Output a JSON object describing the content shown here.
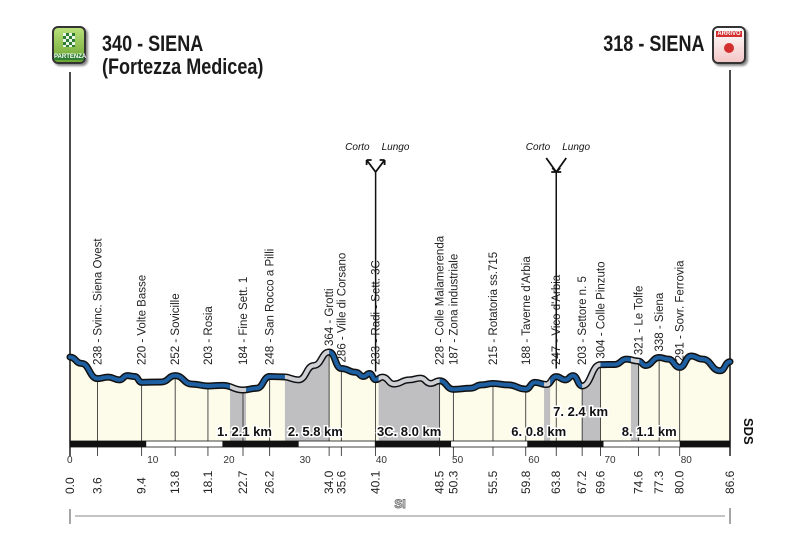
{
  "start": {
    "title": "340 - SIENA",
    "subtitle": "(Fortezza Medicea)",
    "badge": "PARTENZA",
    "badge_color": "#7cb342"
  },
  "finish": {
    "title": "318 - SIENA",
    "badge": "ARRIVO",
    "badge_color": "#e53935"
  },
  "colors": {
    "profile": "#1d5fa0",
    "sector": "#bfbfc1",
    "fill": "#fdfbea",
    "outline": "#111111"
  },
  "chart_data": {
    "type": "area",
    "xlabel": "",
    "ylabel": "",
    "xlim": [
      0,
      86.6
    ],
    "x_ticks": [
      0,
      10,
      20,
      30,
      40,
      50,
      60,
      70,
      80
    ],
    "profile": [
      [
        0,
        340
      ],
      [
        1.5,
        310
      ],
      [
        3.6,
        238
      ],
      [
        5,
        245
      ],
      [
        6.5,
        232
      ],
      [
        7.5,
        252
      ],
      [
        8.5,
        248
      ],
      [
        9.4,
        220
      ],
      [
        12,
        222
      ],
      [
        13.8,
        252
      ],
      [
        16,
        212
      ],
      [
        18.1,
        203
      ],
      [
        20,
        206
      ],
      [
        22.7,
        184
      ],
      [
        24.5,
        192
      ],
      [
        26.2,
        248
      ],
      [
        28,
        246
      ],
      [
        30,
        232
      ],
      [
        32,
        300
      ],
      [
        34.0,
        364
      ],
      [
        35.6,
        286
      ],
      [
        37.5,
        268
      ],
      [
        38.5,
        248
      ],
      [
        39.3,
        262
      ],
      [
        40.1,
        233
      ],
      [
        41,
        245
      ],
      [
        42.5,
        212
      ],
      [
        44.5,
        232
      ],
      [
        46,
        240
      ],
      [
        47.3,
        215
      ],
      [
        48.5,
        228
      ],
      [
        50.3,
        187
      ],
      [
        52.5,
        192
      ],
      [
        54,
        208
      ],
      [
        55.5,
        215
      ],
      [
        57.5,
        208
      ],
      [
        59.8,
        188
      ],
      [
        61,
        220
      ],
      [
        62.5,
        210
      ],
      [
        63.8,
        247
      ],
      [
        65,
        232
      ],
      [
        66,
        252
      ],
      [
        67.2,
        203
      ],
      [
        69.6,
        304
      ],
      [
        71.5,
        305
      ],
      [
        73,
        330
      ],
      [
        74.6,
        321
      ],
      [
        75.5,
        300
      ],
      [
        77.3,
        338
      ],
      [
        78.5,
        330
      ],
      [
        80.0,
        291
      ],
      [
        81.5,
        345
      ],
      [
        83,
        330
      ],
      [
        85.3,
        275
      ],
      [
        86.6,
        318
      ]
    ],
    "waypoints": [
      {
        "km": "0.0",
        "label": ""
      },
      {
        "km": "3.6",
        "label": "238 - Svinc. Siena Ovest"
      },
      {
        "km": "9.4",
        "label": "220 - Volte Basse"
      },
      {
        "km": "13.8",
        "label": "252 - Sovicille"
      },
      {
        "km": "18.1",
        "label": "203 - Rosia"
      },
      {
        "km": "22.7",
        "label": "184 - Fine Sett. 1"
      },
      {
        "km": "26.2",
        "label": "248 - San Rocco a Pilli"
      },
      {
        "km": "34.0",
        "label": "364 - Grotti"
      },
      {
        "km": "35.6",
        "label": "286 - Ville di Corsano"
      },
      {
        "km": "40.1",
        "label": "233 - Radi - Sett. 3C"
      },
      {
        "km": "48.5",
        "label": "228 - Colle Malamerenda"
      },
      {
        "km": "50.3",
        "label": "187 - Zona industriale"
      },
      {
        "km": "55.5",
        "label": "215 - Rotatoria ss.715"
      },
      {
        "km": "59.8",
        "label": "188 - Taverne d'Arbia"
      },
      {
        "km": "63.8",
        "label": "247 - Vico d'Arbia"
      },
      {
        "km": "67.2",
        "label": "203 - Settore n. 5"
      },
      {
        "km": "69.6",
        "label": "304 - Colle Pinzuto"
      },
      {
        "km": "74.6",
        "label": "321 - Le Tolfe"
      },
      {
        "km": "77.3",
        "label": "338 - Siena"
      },
      {
        "km": "80.0",
        "label": "291 - Sovr. Ferrovia"
      },
      {
        "km": "86.6",
        "label": ""
      }
    ],
    "sectors": [
      {
        "label": "1. 2.1 km",
        "from": 21.0,
        "to": 23.1,
        "label_km": 22.9,
        "row": 1
      },
      {
        "label": "2. 5.8 km",
        "from": 28.2,
        "to": 34.0,
        "label_km": 32.2,
        "row": 1
      },
      {
        "label": "3C. 8.0 km",
        "from": 40.5,
        "to": 48.5,
        "label_km": 44.5,
        "row": 1
      },
      {
        "label": "6. 0.8 km",
        "from": 62.2,
        "to": 63.0,
        "label_km": 61.5,
        "row": 1
      },
      {
        "label": "7. 2.4 km",
        "from": 67.2,
        "to": 69.6,
        "label_km": 67.0,
        "row": 0
      },
      {
        "label": "8. 1.1 km",
        "from": 73.6,
        "to": 74.7,
        "label_km": 76.0,
        "row": 1
      }
    ],
    "forks": [
      {
        "km": 40.1,
        "left": "Corto",
        "right": "Lungo",
        "direction": "split"
      },
      {
        "km": 63.8,
        "left": "Corto",
        "right": "Lungo",
        "direction": "merge"
      }
    ]
  },
  "bottom_label": "SI",
  "side_label": "SDS"
}
